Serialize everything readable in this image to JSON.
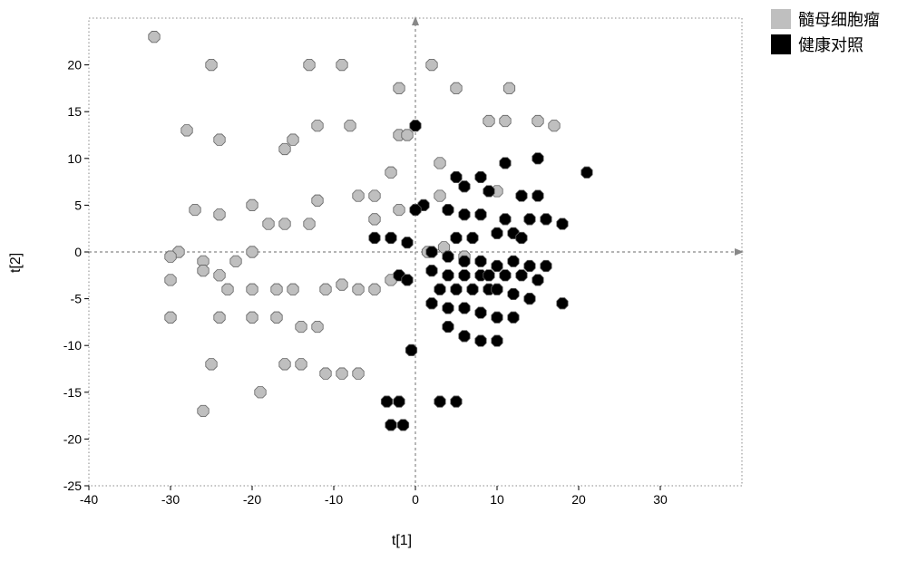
{
  "chart": {
    "type": "scatter",
    "xlabel": "t[1]",
    "ylabel": "t[2]",
    "label_fontsize": 16,
    "tick_fontsize": 14,
    "xlim": [
      -40,
      40
    ],
    "ylim": [
      -25,
      25
    ],
    "xticks": [
      -40,
      -30,
      -20,
      -10,
      0,
      10,
      20,
      30
    ],
    "yticks": [
      -25,
      -20,
      -15,
      -10,
      -5,
      0,
      5,
      10,
      15,
      20
    ],
    "background_color": "#ffffff",
    "border_color": "#888888",
    "grid_color": "#888888",
    "tick_color": "#000000",
    "marker_size": 6.2,
    "marker_stroke": "#606060",
    "marker_stroke_width": 0.8,
    "zero_line_dash": "3,3",
    "series": [
      {
        "name": "髓母细胞瘤",
        "color": "#bfbfbf",
        "points": [
          [
            -32,
            23
          ],
          [
            -25,
            20
          ],
          [
            -13,
            20
          ],
          [
            -9,
            20
          ],
          [
            2,
            20
          ],
          [
            -2,
            17.5
          ],
          [
            5,
            17.5
          ],
          [
            11.5,
            17.5
          ],
          [
            17,
            13.5
          ],
          [
            -12,
            13.5
          ],
          [
            -8,
            13.5
          ],
          [
            -2,
            12.5
          ],
          [
            -1,
            12.5
          ],
          [
            15,
            14
          ],
          [
            9,
            14
          ],
          [
            11,
            14
          ],
          [
            -28,
            13
          ],
          [
            -24,
            12
          ],
          [
            -15,
            12
          ],
          [
            -16,
            11
          ],
          [
            3,
            9.5
          ],
          [
            -3,
            8.5
          ],
          [
            10,
            6.5
          ],
          [
            -5,
            6
          ],
          [
            -7,
            6
          ],
          [
            -12,
            5.5
          ],
          [
            -24,
            4
          ],
          [
            -27,
            4.5
          ],
          [
            -20,
            5
          ],
          [
            -13,
            3
          ],
          [
            -18,
            3
          ],
          [
            -16,
            3
          ],
          [
            -29,
            0
          ],
          [
            3,
            6
          ],
          [
            -2,
            4.5
          ],
          [
            -5,
            3.5
          ],
          [
            -30,
            -0.5
          ],
          [
            -26,
            -1
          ],
          [
            -26,
            -2
          ],
          [
            -22,
            -1
          ],
          [
            -20,
            0
          ],
          [
            -24,
            -2.5
          ],
          [
            -30,
            -3
          ],
          [
            -23,
            -4
          ],
          [
            -20,
            -4
          ],
          [
            -17,
            -4
          ],
          [
            -15,
            -4
          ],
          [
            -9,
            -3.5
          ],
          [
            -11,
            -4
          ],
          [
            -5,
            -4
          ],
          [
            -7,
            -4
          ],
          [
            -3,
            -3
          ],
          [
            1.5,
            0
          ],
          [
            3.5,
            0.5
          ],
          [
            6,
            -0.5
          ],
          [
            -24,
            -7
          ],
          [
            -20,
            -7
          ],
          [
            -17,
            -7
          ],
          [
            -30,
            -7
          ],
          [
            -14,
            -8
          ],
          [
            -12,
            -8
          ],
          [
            -16,
            -12
          ],
          [
            -14,
            -12
          ],
          [
            -25,
            -12
          ],
          [
            -9,
            -13
          ],
          [
            -11,
            -13
          ],
          [
            -7,
            -13
          ],
          [
            -26,
            -17
          ],
          [
            -19,
            -15
          ]
        ]
      },
      {
        "name": "健康对照",
        "color": "#000000",
        "points": [
          [
            0,
            13.5
          ],
          [
            11,
            9.5
          ],
          [
            15,
            10
          ],
          [
            21,
            8.5
          ],
          [
            5,
            8
          ],
          [
            8,
            8
          ],
          [
            6,
            7
          ],
          [
            9,
            6.5
          ],
          [
            13,
            6
          ],
          [
            15,
            6
          ],
          [
            1,
            5
          ],
          [
            0,
            4.5
          ],
          [
            4,
            4.5
          ],
          [
            6,
            4
          ],
          [
            8,
            4
          ],
          [
            11,
            3.5
          ],
          [
            14,
            3.5
          ],
          [
            16,
            3.5
          ],
          [
            18,
            3
          ],
          [
            10,
            2
          ],
          [
            12,
            2
          ],
          [
            13,
            1.5
          ],
          [
            5,
            1.5
          ],
          [
            7,
            1.5
          ],
          [
            -3,
            1.5
          ],
          [
            -1,
            1
          ],
          [
            -5,
            1.5
          ],
          [
            2,
            0
          ],
          [
            4,
            -0.5
          ],
          [
            6,
            -1
          ],
          [
            8,
            -1
          ],
          [
            10,
            -1.5
          ],
          [
            12,
            -1
          ],
          [
            14,
            -1.5
          ],
          [
            16,
            -1.5
          ],
          [
            2,
            -2
          ],
          [
            4,
            -2.5
          ],
          [
            6,
            -2.5
          ],
          [
            8,
            -2.5
          ],
          [
            9,
            -2.5
          ],
          [
            11,
            -2.5
          ],
          [
            13,
            -2.5
          ],
          [
            15,
            -3
          ],
          [
            -2,
            -2.5
          ],
          [
            -1,
            -3
          ],
          [
            3,
            -4
          ],
          [
            5,
            -4
          ],
          [
            7,
            -4
          ],
          [
            9,
            -4
          ],
          [
            10,
            -4
          ],
          [
            12,
            -4.5
          ],
          [
            14,
            -5
          ],
          [
            18,
            -5.5
          ],
          [
            2,
            -5.5
          ],
          [
            4,
            -6
          ],
          [
            6,
            -6
          ],
          [
            8,
            -6.5
          ],
          [
            10,
            -7
          ],
          [
            12,
            -7
          ],
          [
            4,
            -8
          ],
          [
            6,
            -9
          ],
          [
            8,
            -9.5
          ],
          [
            10,
            -9.5
          ],
          [
            -0.5,
            -10.5
          ],
          [
            3,
            -16
          ],
          [
            5,
            -16
          ],
          [
            -2,
            -16
          ],
          [
            -3.5,
            -16
          ],
          [
            -3,
            -18.5
          ],
          [
            -1.5,
            -18.5
          ]
        ]
      }
    ]
  },
  "legend": {
    "items": [
      {
        "label": "髓母细胞瘤",
        "color": "#bfbfbf"
      },
      {
        "label": "健康对照",
        "color": "#000000"
      }
    ],
    "swatch_size": 22,
    "fontsize": 18
  }
}
